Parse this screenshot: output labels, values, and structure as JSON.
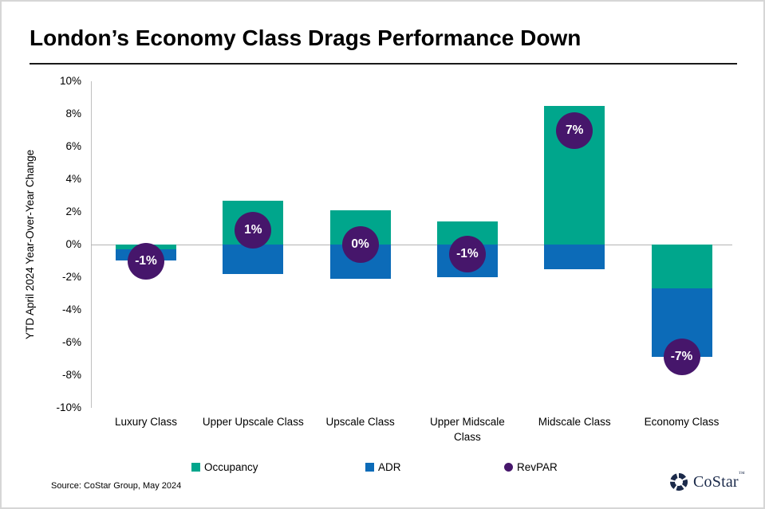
{
  "title": "London’s Economy Class Drags Performance Down",
  "source_note": "Source: CoStar Group, May 2024",
  "brand": {
    "logo_text": "CoStar",
    "trademark": "™",
    "logo_color": "#1b2a4a",
    "logo_icon": "pinwheel-icon"
  },
  "colors": {
    "occupancy": "#00a68c",
    "adr": "#0c6bb8",
    "revpar": "#46166b",
    "gridline": "#b3b3b3",
    "axis": "#bfbfbf"
  },
  "legend": [
    {
      "label": "Occupancy",
      "color": "#00a68c",
      "shape": "square"
    },
    {
      "label": "ADR",
      "color": "#0c6bb8",
      "shape": "square"
    },
    {
      "label": "RevPAR",
      "color": "#46166b",
      "shape": "circle"
    }
  ],
  "chart_data": {
    "type": "bar",
    "stacked": true,
    "title": "London’s Economy Class Drags Performance Down",
    "xlabel": "",
    "ylabel": "YTD April 2024 Year-Over-Year Change",
    "ylim": [
      -10,
      10
    ],
    "ytick_step": 2,
    "ytick_labels": [
      "10%",
      "8%",
      "6%",
      "4%",
      "2%",
      "0%",
      "-2%",
      "-4%",
      "-6%",
      "-8%",
      "-10%"
    ],
    "grid": "zero-line-only",
    "legend_position": "bottom",
    "categories": [
      "Luxury Class",
      "Upper Upscale Class",
      "Upscale Class",
      "Upper Midscale Class",
      "Midscale Class",
      "Economy Class"
    ],
    "series": [
      {
        "name": "Occupancy",
        "color": "#00a68c",
        "render": "bar",
        "values": [
          -0.3,
          2.7,
          2.1,
          1.4,
          8.5,
          -2.7
        ]
      },
      {
        "name": "ADR",
        "color": "#0c6bb8",
        "render": "bar",
        "values": [
          -0.7,
          -1.8,
          -2.1,
          -2.0,
          -1.5,
          -4.2
        ]
      },
      {
        "name": "RevPAR",
        "color": "#46166b",
        "render": "point-label",
        "values": [
          -1.0,
          0.9,
          0.0,
          -0.6,
          7.0,
          -6.9
        ],
        "labels": [
          "-1%",
          "1%",
          "0%",
          "-1%",
          "7%",
          "-7%"
        ]
      }
    ]
  }
}
